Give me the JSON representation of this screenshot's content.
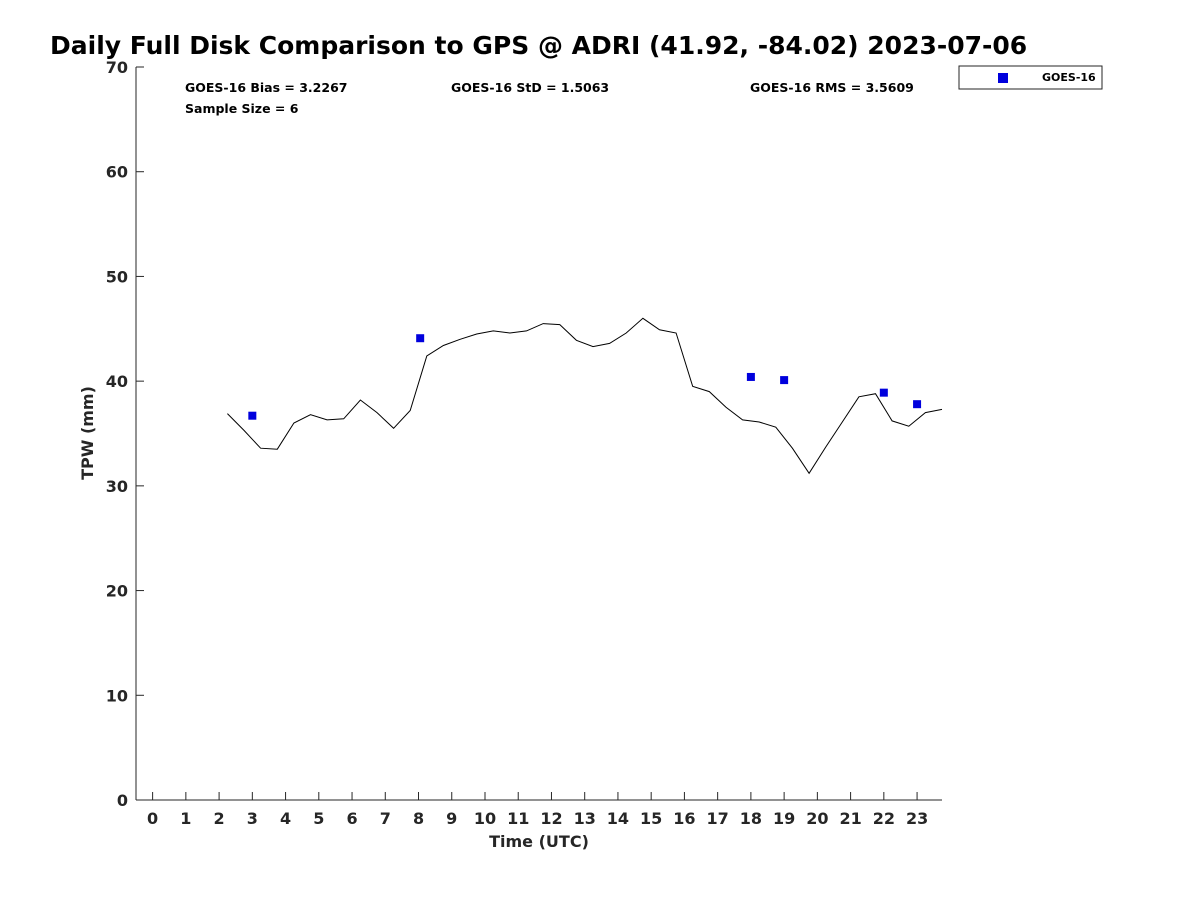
{
  "chart_data": {
    "type": "scatter",
    "title": "Daily Full Disk Comparison to GPS @ ADRI (41.92, -84.02) 2023-07-06",
    "xlabel": "Time (UTC)",
    "ylabel": "TPW (mm)",
    "xlim": [
      -0.5,
      23.75
    ],
    "ylim": [
      0,
      70
    ],
    "x_ticks": [
      0,
      1,
      2,
      3,
      4,
      5,
      6,
      7,
      8,
      9,
      10,
      11,
      12,
      13,
      14,
      15,
      16,
      17,
      18,
      19,
      20,
      21,
      22,
      23
    ],
    "y_ticks": [
      0,
      10,
      20,
      30,
      40,
      50,
      60,
      70
    ],
    "grid": false,
    "legend_position": "outside top-right",
    "stats": {
      "bias": "GOES-16 Bias = 3.2267",
      "std": "GOES-16 StD = 1.5063",
      "rms": "GOES-16 RMS = 3.5609",
      "sample": "Sample Size = 6"
    },
    "series": [
      {
        "name": "GOES-16",
        "kind": "scatter",
        "marker": "square",
        "color": "#0000dd",
        "points": [
          {
            "x": 3.0,
            "y": 36.7
          },
          {
            "x": 8.05,
            "y": 44.1
          },
          {
            "x": 18.0,
            "y": 40.4
          },
          {
            "x": 19.0,
            "y": 40.1
          },
          {
            "x": 22.0,
            "y": 38.9
          },
          {
            "x": 23.0,
            "y": 37.8
          }
        ]
      },
      {
        "kind": "line",
        "color": "#000000",
        "points": [
          {
            "x": 2.25,
            "y": 36.9
          },
          {
            "x": 2.75,
            "y": 35.3
          },
          {
            "x": 3.25,
            "y": 33.6
          },
          {
            "x": 3.75,
            "y": 33.5
          },
          {
            "x": 4.25,
            "y": 36.0
          },
          {
            "x": 4.75,
            "y": 36.8
          },
          {
            "x": 5.25,
            "y": 36.3
          },
          {
            "x": 5.75,
            "y": 36.4
          },
          {
            "x": 6.25,
            "y": 38.2
          },
          {
            "x": 6.75,
            "y": 37.0
          },
          {
            "x": 7.25,
            "y": 35.5
          },
          {
            "x": 7.75,
            "y": 37.2
          },
          {
            "x": 8.25,
            "y": 42.4
          },
          {
            "x": 8.75,
            "y": 43.4
          },
          {
            "x": 9.25,
            "y": 44.0
          },
          {
            "x": 9.75,
            "y": 44.5
          },
          {
            "x": 10.25,
            "y": 44.8
          },
          {
            "x": 10.75,
            "y": 44.6
          },
          {
            "x": 11.25,
            "y": 44.8
          },
          {
            "x": 11.75,
            "y": 45.5
          },
          {
            "x": 12.25,
            "y": 45.4
          },
          {
            "x": 12.75,
            "y": 43.9
          },
          {
            "x": 13.25,
            "y": 43.3
          },
          {
            "x": 13.75,
            "y": 43.6
          },
          {
            "x": 14.25,
            "y": 44.6
          },
          {
            "x": 14.75,
            "y": 46.0
          },
          {
            "x": 15.25,
            "y": 44.9
          },
          {
            "x": 15.75,
            "y": 44.6
          },
          {
            "x": 16.25,
            "y": 39.5
          },
          {
            "x": 16.75,
            "y": 39.0
          },
          {
            "x": 17.25,
            "y": 37.5
          },
          {
            "x": 17.75,
            "y": 36.3
          },
          {
            "x": 18.25,
            "y": 36.1
          },
          {
            "x": 18.75,
            "y": 35.6
          },
          {
            "x": 19.25,
            "y": 33.6
          },
          {
            "x": 19.75,
            "y": 31.2
          },
          {
            "x": 20.25,
            "y": 33.7
          },
          {
            "x": 20.75,
            "y": 36.1
          },
          {
            "x": 21.25,
            "y": 38.5
          },
          {
            "x": 21.75,
            "y": 38.8
          },
          {
            "x": 22.25,
            "y": 36.2
          },
          {
            "x": 22.75,
            "y": 35.7
          },
          {
            "x": 23.25,
            "y": 37.0
          },
          {
            "x": 23.75,
            "y": 37.3
          }
        ]
      }
    ]
  }
}
